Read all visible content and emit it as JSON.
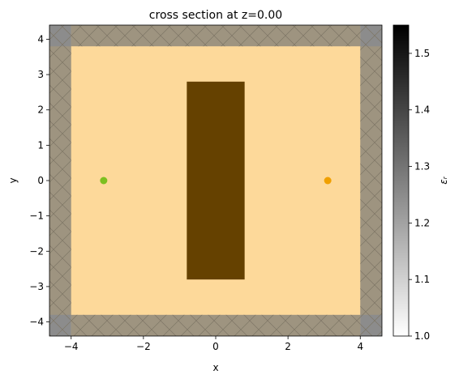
{
  "chart_data": {
    "type": "heatmap",
    "title": "cross section at z=0.00",
    "xlabel": "x",
    "ylabel": "y",
    "xlim": [
      -4.6,
      4.6
    ],
    "ylim": [
      -4.4,
      4.4
    ],
    "xticks": [
      -4,
      -2,
      0,
      2,
      4
    ],
    "xtick_labels": [
      "−4",
      "−2",
      "0",
      "2",
      "4"
    ],
    "yticks": [
      -4,
      -3,
      -2,
      -1,
      0,
      1,
      2,
      3,
      4
    ],
    "ytick_labels": [
      "−4",
      "−3",
      "−2",
      "−1",
      "0",
      "1",
      "2",
      "3",
      "4"
    ],
    "background": {
      "x": [
        -4.6,
        4.6
      ],
      "y": [
        -4.4,
        4.4
      ],
      "color": "#fdd99a"
    },
    "structure": {
      "x": [
        -0.8,
        0.8
      ],
      "y": [
        -2.8,
        2.8
      ],
      "color": "#654100"
    },
    "pml": {
      "inner_x": [
        -4.0,
        4.0
      ],
      "inner_y": [
        -3.8,
        3.8
      ],
      "color": "#9e9480",
      "corner_color": "#8c8c8c"
    },
    "markers": [
      {
        "x": -3.1,
        "y": 0,
        "color": "#7cbf20"
      },
      {
        "x": 3.1,
        "y": 0,
        "color": "#f0a000"
      }
    ],
    "colorbar": {
      "label": "εᵣ",
      "range": [
        1.0,
        1.55
      ],
      "ticks": [
        1.0,
        1.1,
        1.2,
        1.3,
        1.4,
        1.5
      ],
      "tick_labels": [
        "1.0",
        "1.1",
        "1.2",
        "1.3",
        "1.4",
        "1.5"
      ],
      "color_low": "#ffffff",
      "color_high": "#000000"
    }
  }
}
